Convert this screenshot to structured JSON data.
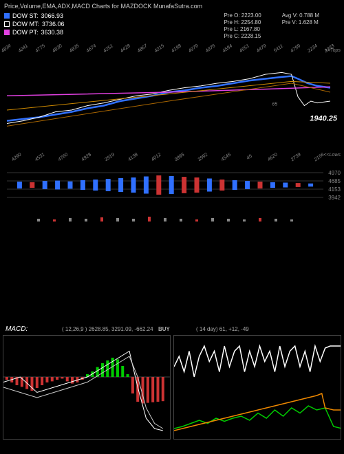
{
  "title": "Price,Volume,EMA,ADX,MACD Charts for MAZDOCK MunafaSutra.com",
  "legend": {
    "st": {
      "label": "DOW ST:",
      "value": "3066.93",
      "color": "#3070ff"
    },
    "mt": {
      "label": "DOW MT:",
      "value": "3736.06",
      "color": "#ffffff"
    },
    "pt": {
      "label": "DOW PT:",
      "value": "3630.38",
      "color": "#e040e0"
    }
  },
  "ohlc_left": {
    "o": "Pre   O: 2223.00",
    "h": "Pre   H: 2254.80",
    "l": "Pre   L: 2167.80",
    "c": "Pre   C: 2228.15"
  },
  "ohlc_right": {
    "avgv": "Avg V: 0.788  M",
    "prev": "Pre   V: 1.628 M"
  },
  "price_chart": {
    "background_color": "#000000",
    "xticks_top": [
      "4834",
      "4241",
      "4775",
      "4830",
      "4835",
      "4674",
      "4251",
      "4428",
      "4867",
      "4215",
      "4198",
      "4979",
      "4976",
      "4594",
      "4051",
      "4479",
      "5411",
      "4799",
      "2234",
      "2283"
    ],
    "xticks_bot": [
      "4290",
      "4531",
      "4760",
      "4928",
      "3919",
      "4138",
      "4012",
      "3895",
      "3992",
      "4545",
      "45",
      "4620",
      "2739",
      "2156"
    ],
    "xticks_mid": [
      "65"
    ],
    "current_price": "1940.25",
    "lines": {
      "blue": {
        "color": "#3070ff",
        "width": 2.5,
        "points": [
          [
            0,
            0.72
          ],
          [
            0.05,
            0.7
          ],
          [
            0.1,
            0.68
          ],
          [
            0.15,
            0.65
          ],
          [
            0.2,
            0.62
          ],
          [
            0.25,
            0.58
          ],
          [
            0.3,
            0.55
          ],
          [
            0.35,
            0.5
          ],
          [
            0.4,
            0.47
          ],
          [
            0.45,
            0.44
          ],
          [
            0.5,
            0.4
          ],
          [
            0.55,
            0.38
          ],
          [
            0.6,
            0.35
          ],
          [
            0.65,
            0.33
          ],
          [
            0.7,
            0.3
          ],
          [
            0.75,
            0.27
          ],
          [
            0.8,
            0.25
          ],
          [
            0.85,
            0.23
          ],
          [
            0.88,
            0.22
          ],
          [
            0.9,
            0.25
          ],
          [
            0.93,
            0.3
          ],
          [
            0.96,
            0.33
          ],
          [
            1.0,
            0.35
          ]
        ]
      },
      "white": {
        "color": "#ffffff",
        "width": 1,
        "points": [
          [
            0,
            0.75
          ],
          [
            0.05,
            0.72
          ],
          [
            0.1,
            0.68
          ],
          [
            0.15,
            0.62
          ],
          [
            0.2,
            0.6
          ],
          [
            0.25,
            0.55
          ],
          [
            0.3,
            0.52
          ],
          [
            0.35,
            0.48
          ],
          [
            0.4,
            0.44
          ],
          [
            0.45,
            0.42
          ],
          [
            0.5,
            0.38
          ],
          [
            0.55,
            0.35
          ],
          [
            0.6,
            0.33
          ],
          [
            0.65,
            0.3
          ],
          [
            0.7,
            0.28
          ],
          [
            0.75,
            0.25
          ],
          [
            0.8,
            0.2
          ],
          [
            0.85,
            0.18
          ],
          [
            0.88,
            0.2
          ],
          [
            0.9,
            0.45
          ],
          [
            0.92,
            0.55
          ],
          [
            0.94,
            0.5
          ],
          [
            0.96,
            0.52
          ],
          [
            1.0,
            0.5
          ]
        ]
      },
      "magenta": {
        "color": "#e040e0",
        "width": 1.5,
        "points": [
          [
            0,
            0.44
          ],
          [
            0.5,
            0.4
          ],
          [
            0.85,
            0.36
          ],
          [
            1.0,
            0.34
          ]
        ]
      },
      "orange1": {
        "color": "#cc8800",
        "width": 1,
        "points": [
          [
            0,
            0.6
          ],
          [
            0.5,
            0.42
          ],
          [
            0.88,
            0.28
          ],
          [
            1.0,
            0.3
          ]
        ]
      },
      "orange2": {
        "color": "#aa6600",
        "width": 1,
        "points": [
          [
            0,
            0.78
          ],
          [
            0.5,
            0.5
          ],
          [
            0.88,
            0.3
          ],
          [
            1.0,
            0.4
          ]
        ]
      }
    },
    "right_axis_label": "<<Tops",
    "right_axis_label2": "<<Lows"
  },
  "volume_chart": {
    "grid_lines": [
      0.15,
      0.35,
      0.55,
      0.75
    ],
    "grid_color": "#333",
    "right_labels": [
      "4970",
      "4685",
      "4153",
      "3942"
    ],
    "label_colors": [
      "#4af",
      "#e80",
      "#e33",
      "#0c4"
    ],
    "bars": [
      {
        "x": 0.04,
        "h": 0.15,
        "c": "#3070ff"
      },
      {
        "x": 0.08,
        "h": 0.12,
        "c": "#cc3333"
      },
      {
        "x": 0.12,
        "h": 0.18,
        "c": "#3070ff"
      },
      {
        "x": 0.16,
        "h": 0.2,
        "c": "#3070ff"
      },
      {
        "x": 0.2,
        "h": 0.16,
        "c": "#3070ff"
      },
      {
        "x": 0.24,
        "h": 0.22,
        "c": "#3070ff"
      },
      {
        "x": 0.28,
        "h": 0.25,
        "c": "#3070ff"
      },
      {
        "x": 0.32,
        "h": 0.28,
        "c": "#3070ff"
      },
      {
        "x": 0.36,
        "h": 0.32,
        "c": "#3070ff"
      },
      {
        "x": 0.4,
        "h": 0.35,
        "c": "#3070ff"
      },
      {
        "x": 0.44,
        "h": 0.4,
        "c": "#3070ff"
      },
      {
        "x": 0.48,
        "h": 0.45,
        "c": "#cc3333"
      },
      {
        "x": 0.52,
        "h": 0.42,
        "c": "#3070ff"
      },
      {
        "x": 0.56,
        "h": 0.38,
        "c": "#cc3333"
      },
      {
        "x": 0.6,
        "h": 0.35,
        "c": "#cc3333"
      },
      {
        "x": 0.64,
        "h": 0.3,
        "c": "#3070ff"
      },
      {
        "x": 0.68,
        "h": 0.25,
        "c": "#cc3333"
      },
      {
        "x": 0.72,
        "h": 0.22,
        "c": "#3070ff"
      },
      {
        "x": 0.76,
        "h": 0.18,
        "c": "#3070ff"
      },
      {
        "x": 0.8,
        "h": 0.15,
        "c": "#cc3333"
      },
      {
        "x": 0.84,
        "h": 0.12,
        "c": "#3070ff"
      },
      {
        "x": 0.88,
        "h": 0.1,
        "c": "#3070ff"
      },
      {
        "x": 0.92,
        "h": 0.08,
        "c": "#cc3333"
      },
      {
        "x": 0.96,
        "h": 0.06,
        "c": "#3070ff"
      }
    ],
    "small_bars": [
      {
        "x": 0.1,
        "h": 0.04,
        "c": "#888"
      },
      {
        "x": 0.15,
        "h": 0.03,
        "c": "#c33"
      },
      {
        "x": 0.2,
        "h": 0.05,
        "c": "#888"
      },
      {
        "x": 0.25,
        "h": 0.04,
        "c": "#888"
      },
      {
        "x": 0.3,
        "h": 0.06,
        "c": "#c33"
      },
      {
        "x": 0.35,
        "h": 0.05,
        "c": "#888"
      },
      {
        "x": 0.4,
        "h": 0.04,
        "c": "#888"
      },
      {
        "x": 0.45,
        "h": 0.07,
        "c": "#c33"
      },
      {
        "x": 0.5,
        "h": 0.05,
        "c": "#888"
      },
      {
        "x": 0.55,
        "h": 0.04,
        "c": "#888"
      },
      {
        "x": 0.6,
        "h": 0.03,
        "c": "#c33"
      },
      {
        "x": 0.65,
        "h": 0.05,
        "c": "#888"
      },
      {
        "x": 0.7,
        "h": 0.04,
        "c": "#888"
      },
      {
        "x": 0.75,
        "h": 0.03,
        "c": "#888"
      },
      {
        "x": 0.8,
        "h": 0.05,
        "c": "#c33"
      },
      {
        "x": 0.85,
        "h": 0.04,
        "c": "#888"
      },
      {
        "x": 0.9,
        "h": 0.03,
        "c": "#888"
      }
    ]
  },
  "macd": {
    "title": "MACD:",
    "left_vals": "( 12,26,9 ) 2628.85, 3291.09, -662.24",
    "left_label": "BUY",
    "right_vals": "( 14   day) 61, +12, -49",
    "panel1": {
      "bars": [
        {
          "x": 0.02,
          "h": -0.05,
          "c": "#c33"
        },
        {
          "x": 0.05,
          "h": -0.1,
          "c": "#c33"
        },
        {
          "x": 0.08,
          "h": -0.15,
          "c": "#c33"
        },
        {
          "x": 0.11,
          "h": -0.18,
          "c": "#c33"
        },
        {
          "x": 0.14,
          "h": -0.22,
          "c": "#c33"
        },
        {
          "x": 0.17,
          "h": -0.25,
          "c": "#c33"
        },
        {
          "x": 0.2,
          "h": -0.2,
          "c": "#c33"
        },
        {
          "x": 0.23,
          "h": -0.15,
          "c": "#c33"
        },
        {
          "x": 0.26,
          "h": -0.1,
          "c": "#c33"
        },
        {
          "x": 0.29,
          "h": -0.08,
          "c": "#c33"
        },
        {
          "x": 0.32,
          "h": -0.05,
          "c": "#c33"
        },
        {
          "x": 0.35,
          "h": -0.03,
          "c": "#c33"
        },
        {
          "x": 0.38,
          "h": -0.08,
          "c": "#c33"
        },
        {
          "x": 0.41,
          "h": -0.12,
          "c": "#c33"
        },
        {
          "x": 0.44,
          "h": -0.1,
          "c": "#c33"
        },
        {
          "x": 0.47,
          "h": -0.05,
          "c": "#c33"
        },
        {
          "x": 0.5,
          "h": 0.05,
          "c": "#0c0"
        },
        {
          "x": 0.53,
          "h": 0.1,
          "c": "#0c0"
        },
        {
          "x": 0.56,
          "h": 0.18,
          "c": "#0c0"
        },
        {
          "x": 0.59,
          "h": 0.25,
          "c": "#0c0"
        },
        {
          "x": 0.62,
          "h": 0.3,
          "c": "#0c0"
        },
        {
          "x": 0.65,
          "h": 0.35,
          "c": "#0c0"
        },
        {
          "x": 0.68,
          "h": 0.32,
          "c": "#0c0"
        },
        {
          "x": 0.71,
          "h": 0.2,
          "c": "#0c0"
        },
        {
          "x": 0.74,
          "h": 0.05,
          "c": "#0c0"
        },
        {
          "x": 0.77,
          "h": -0.3,
          "c": "#c33"
        },
        {
          "x": 0.8,
          "h": -0.45,
          "c": "#c33"
        },
        {
          "x": 0.83,
          "h": -0.48,
          "c": "#c33"
        },
        {
          "x": 0.86,
          "h": -0.47,
          "c": "#c33"
        },
        {
          "x": 0.89,
          "h": -0.46,
          "c": "#c33"
        },
        {
          "x": 0.92,
          "h": -0.45,
          "c": "#c33"
        },
        {
          "x": 0.95,
          "h": -0.44,
          "c": "#c33"
        }
      ],
      "lines": {
        "white1": {
          "color": "#fff",
          "width": 1,
          "points": [
            [
              0,
              0.45
            ],
            [
              0.1,
              0.4
            ],
            [
              0.2,
              0.55
            ],
            [
              0.3,
              0.5
            ],
            [
              0.4,
              0.45
            ],
            [
              0.5,
              0.4
            ],
            [
              0.6,
              0.3
            ],
            [
              0.7,
              0.2
            ],
            [
              0.75,
              0.15
            ],
            [
              0.8,
              0.5
            ],
            [
              0.85,
              0.8
            ],
            [
              0.9,
              0.9
            ],
            [
              0.95,
              0.92
            ]
          ]
        },
        "white2": {
          "color": "#ccc",
          "width": 1,
          "points": [
            [
              0,
              0.5
            ],
            [
              0.1,
              0.55
            ],
            [
              0.2,
              0.6
            ],
            [
              0.3,
              0.55
            ],
            [
              0.4,
              0.5
            ],
            [
              0.5,
              0.45
            ],
            [
              0.6,
              0.35
            ],
            [
              0.7,
              0.25
            ],
            [
              0.75,
              0.2
            ],
            [
              0.8,
              0.4
            ],
            [
              0.85,
              0.7
            ],
            [
              0.9,
              0.85
            ],
            [
              0.95,
              0.9
            ]
          ]
        }
      }
    },
    "panel2": {
      "lines": {
        "white": {
          "color": "#fff",
          "width": 1.5,
          "points": [
            [
              0,
              0.3
            ],
            [
              0.03,
              0.2
            ],
            [
              0.06,
              0.35
            ],
            [
              0.09,
              0.15
            ],
            [
              0.12,
              0.4
            ],
            [
              0.15,
              0.2
            ],
            [
              0.18,
              0.1
            ],
            [
              0.21,
              0.25
            ],
            [
              0.24,
              0.15
            ],
            [
              0.27,
              0.35
            ],
            [
              0.3,
              0.1
            ],
            [
              0.33,
              0.3
            ],
            [
              0.36,
              0.15
            ],
            [
              0.39,
              0.1
            ],
            [
              0.42,
              0.35
            ],
            [
              0.45,
              0.15
            ],
            [
              0.48,
              0.3
            ],
            [
              0.51,
              0.1
            ],
            [
              0.54,
              0.25
            ],
            [
              0.57,
              0.15
            ],
            [
              0.6,
              0.35
            ],
            [
              0.63,
              0.1
            ],
            [
              0.66,
              0.3
            ],
            [
              0.69,
              0.15
            ],
            [
              0.72,
              0.1
            ],
            [
              0.75,
              0.3
            ],
            [
              0.78,
              0.15
            ],
            [
              0.81,
              0.35
            ],
            [
              0.84,
              0.1
            ],
            [
              0.87,
              0.25
            ],
            [
              0.9,
              0.12
            ],
            [
              0.93,
              0.1
            ],
            [
              0.96,
              0.1
            ],
            [
              1.0,
              0.1
            ]
          ]
        },
        "green": {
          "color": "#0c0",
          "width": 1.5,
          "points": [
            [
              0,
              0.9
            ],
            [
              0.05,
              0.88
            ],
            [
              0.1,
              0.85
            ],
            [
              0.15,
              0.82
            ],
            [
              0.2,
              0.85
            ],
            [
              0.25,
              0.8
            ],
            [
              0.3,
              0.83
            ],
            [
              0.35,
              0.8
            ],
            [
              0.4,
              0.78
            ],
            [
              0.45,
              0.82
            ],
            [
              0.5,
              0.75
            ],
            [
              0.55,
              0.8
            ],
            [
              0.6,
              0.72
            ],
            [
              0.65,
              0.78
            ],
            [
              0.7,
              0.7
            ],
            [
              0.75,
              0.75
            ],
            [
              0.8,
              0.68
            ],
            [
              0.85,
              0.72
            ],
            [
              0.9,
              0.7
            ],
            [
              0.95,
              0.88
            ],
            [
              1.0,
              0.9
            ]
          ]
        },
        "orange": {
          "color": "#e80",
          "width": 1.5,
          "points": [
            [
              0,
              0.92
            ],
            [
              0.05,
              0.9
            ],
            [
              0.1,
              0.88
            ],
            [
              0.15,
              0.86
            ],
            [
              0.2,
              0.84
            ],
            [
              0.25,
              0.82
            ],
            [
              0.3,
              0.8
            ],
            [
              0.35,
              0.78
            ],
            [
              0.4,
              0.76
            ],
            [
              0.45,
              0.74
            ],
            [
              0.5,
              0.72
            ],
            [
              0.55,
              0.7
            ],
            [
              0.6,
              0.68
            ],
            [
              0.65,
              0.66
            ],
            [
              0.7,
              0.64
            ],
            [
              0.75,
              0.62
            ],
            [
              0.8,
              0.6
            ],
            [
              0.85,
              0.58
            ],
            [
              0.88,
              0.56
            ],
            [
              0.9,
              0.7
            ],
            [
              0.95,
              0.72
            ],
            [
              1.0,
              0.72
            ]
          ]
        }
      }
    }
  }
}
